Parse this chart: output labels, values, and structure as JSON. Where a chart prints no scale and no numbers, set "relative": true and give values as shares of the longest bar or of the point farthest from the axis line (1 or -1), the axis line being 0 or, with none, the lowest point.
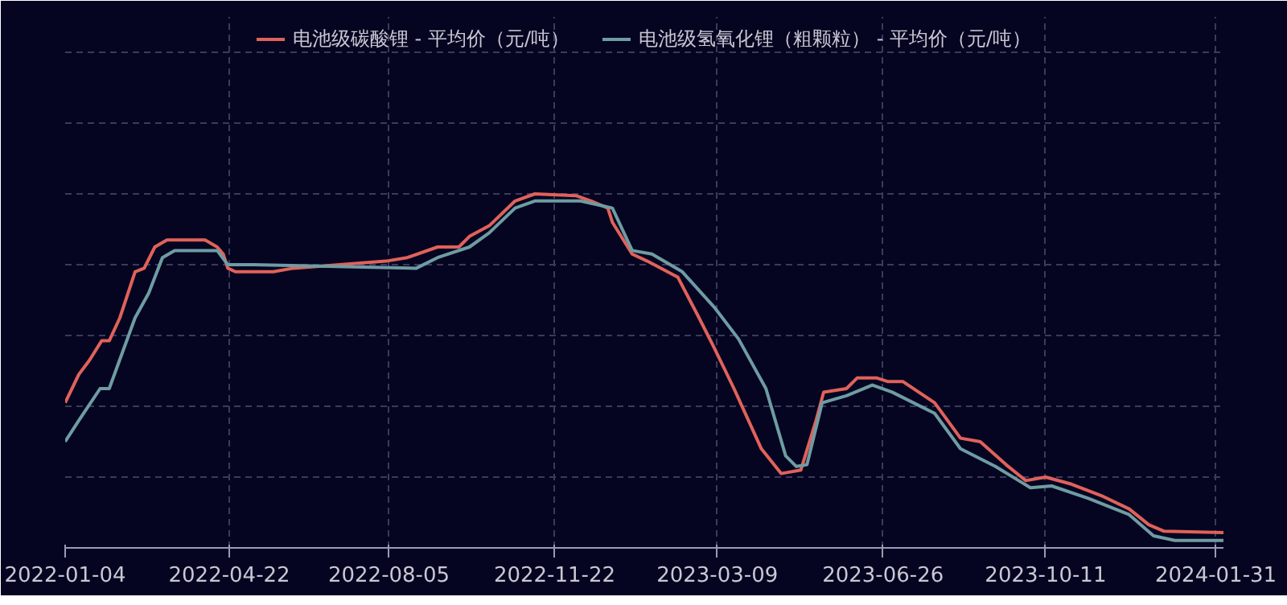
{
  "chart_data": {
    "type": "line",
    "relative": true,
    "grid": true,
    "legend": "top",
    "marker": "none",
    "line_style": "solid",
    "xlim": [
      "2022-01-04",
      "2024-02-05"
    ],
    "xticks": [
      "2022-01-04",
      "2022-04-22",
      "2022-08-05",
      "2022-11-22",
      "2023-03-09",
      "2023-06-26",
      "2023-10-11",
      "2024-01-31"
    ],
    "series": [
      {
        "name": "电池级碳酸锂 - 平均价（元/吨）",
        "color": "#e0625a",
        "x": [
          "2022-01-04",
          "2022-01-13",
          "2022-01-20",
          "2022-01-28",
          "2022-02-02",
          "2022-02-09",
          "2022-02-19",
          "2022-02-25",
          "2022-03-04",
          "2022-03-12",
          "2022-04-06",
          "2022-04-14",
          "2022-04-18",
          "2022-04-21",
          "2022-04-26",
          "2022-05-21",
          "2022-06-03",
          "2022-08-03",
          "2022-08-17",
          "2022-09-06",
          "2022-09-20",
          "2022-09-27",
          "2022-10-10",
          "2022-10-27",
          "2022-11-09",
          "2022-12-06",
          "2022-12-16",
          "2022-12-27",
          "2022-12-30",
          "2023-01-12",
          "2023-01-22",
          "2023-02-11",
          "2023-02-25",
          "2023-03-07",
          "2023-03-20",
          "2023-04-07",
          "2023-04-20",
          "2023-05-03",
          "2023-05-13",
          "2023-05-18",
          "2023-06-02",
          "2023-06-09",
          "2023-06-22",
          "2023-06-29",
          "2023-07-09",
          "2023-07-30",
          "2023-08-16",
          "2023-08-29",
          "2023-09-15",
          "2023-09-28",
          "2023-10-11",
          "2023-10-28",
          "2023-11-18",
          "2023-12-05",
          "2023-12-18",
          "2023-12-28",
          "2024-02-05"
        ],
        "values": [
          0.41,
          0.49,
          0.53,
          0.585,
          0.585,
          0.65,
          0.78,
          0.79,
          0.85,
          0.87,
          0.87,
          0.85,
          0.83,
          0.79,
          0.78,
          0.78,
          0.79,
          0.81,
          0.82,
          0.85,
          0.85,
          0.88,
          0.91,
          0.98,
          1.0,
          0.995,
          0.98,
          0.96,
          0.92,
          0.83,
          0.81,
          0.765,
          0.65,
          0.565,
          0.45,
          0.28,
          0.21,
          0.22,
          0.36,
          0.44,
          0.45,
          0.48,
          0.48,
          0.47,
          0.47,
          0.41,
          0.31,
          0.3,
          0.235,
          0.19,
          0.2,
          0.18,
          0.145,
          0.11,
          0.065,
          0.047,
          0.043
        ]
      },
      {
        "name": "电池级氢氧化锂（粗颗粒） - 平均价（元/吨）",
        "color": "#6e9ca3",
        "x": [
          "2022-01-04",
          "2022-01-13",
          "2022-01-27",
          "2022-02-02",
          "2022-02-19",
          "2022-02-28",
          "2022-03-09",
          "2022-03-17",
          "2022-04-14",
          "2022-04-21",
          "2022-05-08",
          "2022-08-23",
          "2022-09-06",
          "2022-09-27",
          "2022-10-10",
          "2022-10-27",
          "2022-11-09",
          "2022-12-09",
          "2022-12-30",
          "2023-01-12",
          "2023-01-25",
          "2023-02-14",
          "2023-03-07",
          "2023-03-23",
          "2023-04-10",
          "2023-04-23",
          "2023-04-30",
          "2023-05-07",
          "2023-05-17",
          "2023-06-02",
          "2023-06-19",
          "2023-07-02",
          "2023-07-30",
          "2023-08-16",
          "2023-09-08",
          "2023-10-01",
          "2023-10-15",
          "2023-11-08",
          "2023-12-05",
          "2023-12-21",
          "2024-01-04",
          "2024-02-05"
        ],
        "values": [
          0.3,
          0.36,
          0.45,
          0.45,
          0.65,
          0.72,
          0.82,
          0.84,
          0.84,
          0.8,
          0.8,
          0.79,
          0.82,
          0.85,
          0.89,
          0.96,
          0.98,
          0.98,
          0.96,
          0.84,
          0.83,
          0.78,
          0.68,
          0.59,
          0.45,
          0.26,
          0.23,
          0.235,
          0.41,
          0.43,
          0.46,
          0.44,
          0.38,
          0.28,
          0.23,
          0.17,
          0.175,
          0.14,
          0.094,
          0.034,
          0.021,
          0.021
        ]
      }
    ]
  }
}
